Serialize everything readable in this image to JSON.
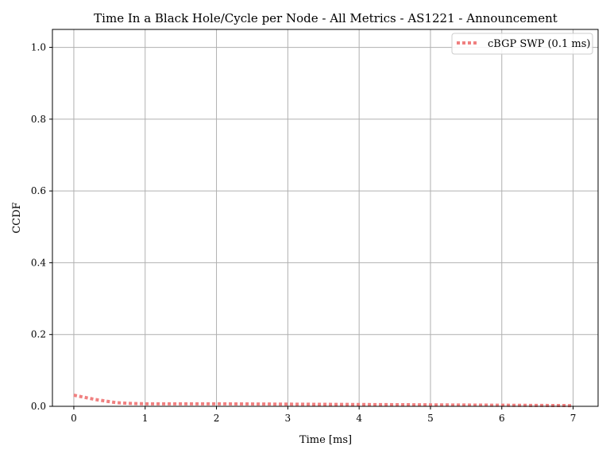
{
  "chart_data": {
    "type": "line",
    "title": "Time In a Black Hole/Cycle per Node - All Metrics - AS1221 - Announcement",
    "xlabel": "Time [ms]",
    "ylabel": "CCDF",
    "xlim": [
      -0.3,
      7.35
    ],
    "ylim": [
      0.0,
      1.05
    ],
    "xticks": [
      0,
      1,
      2,
      3,
      4,
      5,
      6,
      7
    ],
    "yticks": [
      0.0,
      0.2,
      0.4,
      0.6,
      0.8,
      1.0
    ],
    "xtick_labels": [
      "0",
      "1",
      "2",
      "3",
      "4",
      "5",
      "6",
      "7"
    ],
    "ytick_labels": [
      "0.0",
      "0.2",
      "0.4",
      "0.6",
      "0.8",
      "1.0"
    ],
    "grid": true,
    "legend_position": "top-right",
    "series": [
      {
        "name": "cBGP SWP (0.1 ms)",
        "color": "#f08080",
        "line_style": "dotted",
        "x": [
          0.0,
          0.1,
          0.2,
          0.3,
          0.4,
          0.5,
          0.6,
          0.8,
          1.0,
          1.5,
          2.0,
          3.0,
          4.0,
          5.0,
          6.0,
          7.0
        ],
        "y": [
          0.031,
          0.027,
          0.023,
          0.019,
          0.016,
          0.013,
          0.01,
          0.008,
          0.007,
          0.007,
          0.007,
          0.006,
          0.005,
          0.004,
          0.003,
          0.002
        ]
      }
    ]
  }
}
